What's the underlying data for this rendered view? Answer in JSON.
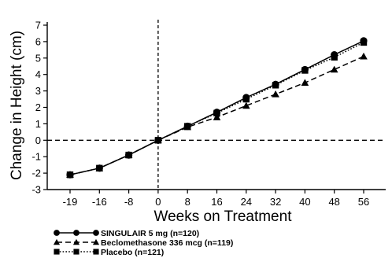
{
  "chart_data": {
    "type": "line",
    "title": "",
    "xlabel": "Weeks on Treatment",
    "ylabel": "Change in Height (cm)",
    "xlim": [
      -19,
      56
    ],
    "ylim": [
      -3,
      7
    ],
    "x_ticks": [
      -19,
      -16,
      -8,
      0,
      8,
      16,
      24,
      32,
      40,
      48,
      56
    ],
    "y_ticks": [
      -3,
      -2,
      -1,
      0,
      1,
      2,
      3,
      4,
      5,
      6,
      7
    ],
    "x": [
      -19,
      -16,
      -8,
      0,
      8,
      16,
      24,
      32,
      40,
      48,
      56
    ],
    "grid": false,
    "reference_lines": {
      "x": 0,
      "y": 0
    },
    "legend_position": "bottom-left",
    "series": [
      {
        "name": "SINGULAIR 5 mg (n=120)",
        "marker": "circle",
        "line_style": "solid",
        "values": [
          -2.1,
          -1.7,
          -0.9,
          0.0,
          0.85,
          1.7,
          2.6,
          3.4,
          4.3,
          5.2,
          6.05
        ]
      },
      {
        "name": "Beclomethasone 336 mcg (n=119)",
        "marker": "triangle",
        "line_style": "dashed",
        "values": [
          -2.1,
          -1.7,
          -0.9,
          0.0,
          0.8,
          1.4,
          2.1,
          2.8,
          3.5,
          4.3,
          5.1
        ]
      },
      {
        "name": "Placebo (n=121)",
        "marker": "square",
        "line_style": "dotted",
        "values": [
          -2.1,
          -1.7,
          -0.9,
          0.0,
          0.85,
          1.65,
          2.5,
          3.35,
          4.25,
          5.05,
          5.95
        ]
      }
    ]
  }
}
